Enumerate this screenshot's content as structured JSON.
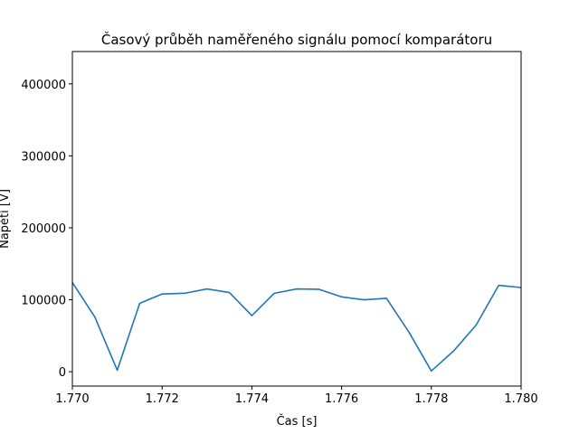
{
  "chart_data": {
    "type": "line",
    "title": "Časový průběh naměřeného signálu pomocí komparátoru",
    "xlabel": "Čas [s]",
    "ylabel": "Napětí [V]",
    "xlim": [
      1.77,
      1.78
    ],
    "ylim": [
      -20000,
      445000
    ],
    "grid": false,
    "x_ticks": [
      1.77,
      1.772,
      1.774,
      1.776,
      1.778,
      1.78
    ],
    "x_tick_labels": [
      "1.770",
      "1.772",
      "1.774",
      "1.776",
      "1.778",
      "1.780"
    ],
    "y_ticks": [
      0,
      100000,
      200000,
      300000,
      400000
    ],
    "y_tick_labels": [
      "0",
      "100000",
      "200000",
      "300000",
      "400000"
    ],
    "series": [
      {
        "color": "#1f77b4",
        "x": [
          1.77,
          1.7705,
          1.771,
          1.7715,
          1.772,
          1.7725,
          1.773,
          1.7735,
          1.774,
          1.7745,
          1.775,
          1.7755,
          1.776,
          1.7765,
          1.777,
          1.7775,
          1.778,
          1.7785,
          1.779,
          1.7795,
          1.78
        ],
        "y": [
          124000,
          76000,
          2000,
          95000,
          108000,
          109000,
          115000,
          110000,
          78000,
          109000,
          115000,
          114500,
          104000,
          100000,
          102000,
          55000,
          1000,
          29000,
          65000,
          120000,
          117000
        ]
      }
    ]
  }
}
